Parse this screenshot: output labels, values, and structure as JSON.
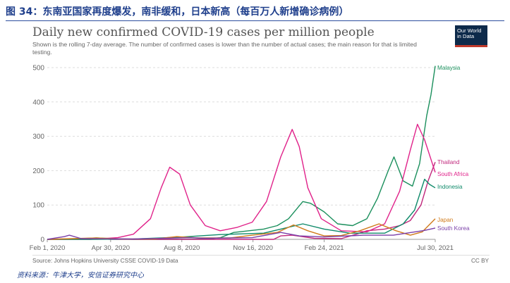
{
  "figure": {
    "number_title": "图 34：东南亚国家再度爆发，南非缓和，日本新高（每百万人新增确诊病例）",
    "footnote": "资料来源：牛津大学，安信证券研究中心"
  },
  "logo": {
    "line1": "Our World",
    "line2": "in Data"
  },
  "source": "Source: Johns Hopkins University CSSE COVID-19 Data",
  "license": "CC BY",
  "colors": {
    "figure_title": "#1f3f8c",
    "grid": "#dddddd",
    "axis": "#999999",
    "text": "#666666"
  },
  "chart_data": {
    "type": "line",
    "title": "Daily new confirmed COVID-19 cases per million people",
    "subtitle": "Shown is the rolling 7-day average. The number of confirmed cases is lower than the number of actual cases; the main reason for that is limited testing.",
    "xlabel": "",
    "ylabel": "",
    "ylim": [
      0,
      500
    ],
    "y_ticks": [
      0,
      100,
      200,
      300,
      400,
      500
    ],
    "x_ticks": [
      "Feb 1, 2020",
      "Apr 30, 2020",
      "Aug 8, 2020",
      "Nov 16, 2020",
      "Feb 24, 2021",
      "Jul 30, 2021"
    ],
    "x_range": [
      "2020-02-01",
      "2021-07-30"
    ],
    "grid": "horizontal dashed",
    "legend": "line-end labels",
    "series": [
      {
        "name": "Malaysia",
        "color": "#1a8f5c",
        "points": [
          [
            "2020-02-01",
            0
          ],
          [
            "2020-03-20",
            2
          ],
          [
            "2020-04-10",
            4
          ],
          [
            "2020-05-01",
            2
          ],
          [
            "2020-06-01",
            0
          ],
          [
            "2020-08-01",
            0
          ],
          [
            "2020-09-15",
            1
          ],
          [
            "2020-10-01",
            5
          ],
          [
            "2020-10-20",
            20
          ],
          [
            "2020-11-10",
            25
          ],
          [
            "2020-12-01",
            30
          ],
          [
            "2020-12-20",
            40
          ],
          [
            "2021-01-05",
            60
          ],
          [
            "2021-01-25",
            110
          ],
          [
            "2021-02-05",
            105
          ],
          [
            "2021-02-24",
            80
          ],
          [
            "2021-03-15",
            45
          ],
          [
            "2021-04-05",
            40
          ],
          [
            "2021-04-25",
            60
          ],
          [
            "2021-05-10",
            120
          ],
          [
            "2021-05-25",
            200
          ],
          [
            "2021-06-02",
            240
          ],
          [
            "2021-06-15",
            170
          ],
          [
            "2021-06-28",
            155
          ],
          [
            "2021-07-08",
            220
          ],
          [
            "2021-07-18",
            360
          ],
          [
            "2021-07-24",
            420
          ],
          [
            "2021-07-30",
            505
          ]
        ]
      },
      {
        "name": "Thailand",
        "color": "#c0277c",
        "points": [
          [
            "2020-02-01",
            0
          ],
          [
            "2020-03-25",
            1
          ],
          [
            "2020-04-10",
            2
          ],
          [
            "2020-05-01",
            0
          ],
          [
            "2020-12-15",
            0
          ],
          [
            "2020-12-25",
            10
          ],
          [
            "2021-01-10",
            12
          ],
          [
            "2021-02-10",
            3
          ],
          [
            "2021-03-20",
            2
          ],
          [
            "2021-04-10",
            15
          ],
          [
            "2021-04-25",
            25
          ],
          [
            "2021-05-20",
            30
          ],
          [
            "2021-06-10",
            40
          ],
          [
            "2021-06-25",
            55
          ],
          [
            "2021-07-10",
            100
          ],
          [
            "2021-07-20",
            170
          ],
          [
            "2021-07-30",
            225
          ]
        ]
      },
      {
        "name": "South Africa",
        "color": "#e0228a",
        "points": [
          [
            "2020-02-01",
            0
          ],
          [
            "2020-04-01",
            0
          ],
          [
            "2020-05-10",
            5
          ],
          [
            "2020-06-01",
            15
          ],
          [
            "2020-06-25",
            60
          ],
          [
            "2020-07-10",
            150
          ],
          [
            "2020-07-22",
            210
          ],
          [
            "2020-08-05",
            190
          ],
          [
            "2020-08-20",
            100
          ],
          [
            "2020-09-10",
            40
          ],
          [
            "2020-10-01",
            25
          ],
          [
            "2020-10-25",
            35
          ],
          [
            "2020-11-15",
            50
          ],
          [
            "2020-12-05",
            110
          ],
          [
            "2020-12-25",
            240
          ],
          [
            "2021-01-10",
            320
          ],
          [
            "2021-01-20",
            270
          ],
          [
            "2021-02-01",
            150
          ],
          [
            "2021-02-20",
            60
          ],
          [
            "2021-03-20",
            25
          ],
          [
            "2021-04-25",
            22
          ],
          [
            "2021-05-20",
            45
          ],
          [
            "2021-06-10",
            140
          ],
          [
            "2021-06-25",
            260
          ],
          [
            "2021-07-05",
            335
          ],
          [
            "2021-07-15",
            290
          ],
          [
            "2021-07-30",
            195
          ]
        ]
      },
      {
        "name": "Indonesia",
        "color": "#0f8a6a",
        "points": [
          [
            "2020-02-01",
            0
          ],
          [
            "2020-04-01",
            0
          ],
          [
            "2020-06-01",
            1
          ],
          [
            "2020-08-01",
            6
          ],
          [
            "2020-10-01",
            14
          ],
          [
            "2020-12-01",
            18
          ],
          [
            "2021-01-25",
            45
          ],
          [
            "2021-02-24",
            30
          ],
          [
            "2021-04-01",
            18
          ],
          [
            "2021-05-20",
            18
          ],
          [
            "2021-06-15",
            45
          ],
          [
            "2021-07-01",
            85
          ],
          [
            "2021-07-15",
            175
          ],
          [
            "2021-07-22",
            160
          ],
          [
            "2021-07-30",
            150
          ]
        ]
      },
      {
        "name": "Japan",
        "color": "#d07a1a",
        "points": [
          [
            "2020-02-01",
            0
          ],
          [
            "2020-04-10",
            4
          ],
          [
            "2020-05-15",
            1
          ],
          [
            "2020-07-01",
            1
          ],
          [
            "2020-08-01",
            8
          ],
          [
            "2020-09-01",
            4
          ],
          [
            "2020-10-15",
            4
          ],
          [
            "2020-11-15",
            12
          ],
          [
            "2020-12-20",
            20
          ],
          [
            "2021-01-12",
            42
          ],
          [
            "2021-02-01",
            25
          ],
          [
            "2021-02-24",
            10
          ],
          [
            "2021-03-20",
            11
          ],
          [
            "2021-04-15",
            25
          ],
          [
            "2021-05-12",
            45
          ],
          [
            "2021-06-05",
            25
          ],
          [
            "2021-06-25",
            12
          ],
          [
            "2021-07-12",
            22
          ],
          [
            "2021-07-30",
            60
          ]
        ]
      },
      {
        "name": "South Korea",
        "color": "#7a3fa8",
        "points": [
          [
            "2020-02-01",
            0
          ],
          [
            "2020-02-25",
            8
          ],
          [
            "2020-03-03",
            12
          ],
          [
            "2020-03-20",
            2
          ],
          [
            "2020-06-01",
            1
          ],
          [
            "2020-08-20",
            5
          ],
          [
            "2020-09-10",
            3
          ],
          [
            "2020-11-15",
            5
          ],
          [
            "2020-12-25",
            20
          ],
          [
            "2021-01-20",
            10
          ],
          [
            "2021-02-24",
            7
          ],
          [
            "2021-04-20",
            12
          ],
          [
            "2021-06-01",
            12
          ],
          [
            "2021-07-15",
            26
          ],
          [
            "2021-07-30",
            33
          ]
        ]
      }
    ]
  }
}
